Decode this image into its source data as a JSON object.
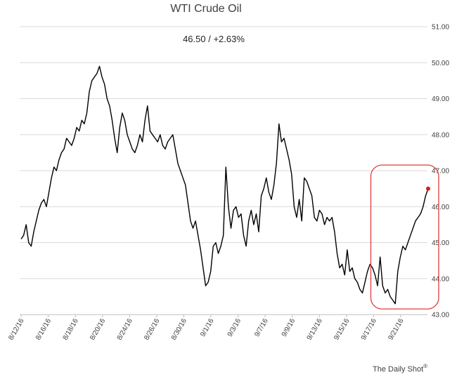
{
  "chart_data": {
    "type": "line",
    "title": "WTI Crude Oil",
    "subtitle": "46.50  /  +2.63%",
    "xlabel": "",
    "ylabel": "",
    "ylim": [
      43.0,
      51.0
    ],
    "yticks": [
      "43.00",
      "44.00",
      "45.00",
      "46.00",
      "47.00",
      "48.00",
      "49.00",
      "50.00",
      "51.00"
    ],
    "y_axis_side": "right",
    "grid": "horizontal",
    "x_tick_labels": [
      "8/12/16",
      "8/16/16",
      "8/18/16",
      "8/20/16",
      "8/24/16",
      "8/26/16",
      "8/30/16",
      "9/1/16",
      "9/3/16",
      "9/7/16",
      "9/9/16",
      "9/13/16",
      "9/15/16",
      "9/17/16",
      "9/21/16"
    ],
    "series": [
      {
        "values": [
          45.1,
          45.2,
          45.5,
          45.0,
          44.9,
          45.3,
          45.6,
          45.9,
          46.1,
          46.2,
          46.0,
          46.4,
          46.8,
          47.1,
          47.0,
          47.3,
          47.5,
          47.6,
          47.9,
          47.8,
          47.7,
          47.9,
          48.2,
          48.1,
          48.4,
          48.3,
          48.6,
          49.2,
          49.5,
          49.6,
          49.7,
          49.9,
          49.6,
          49.4,
          49.0,
          48.8,
          48.4,
          47.9,
          47.5,
          48.2,
          48.6,
          48.4,
          48.0,
          47.8,
          47.6,
          47.5,
          47.7,
          48.0,
          47.8,
          48.4,
          48.8,
          48.1,
          48.0,
          47.9,
          47.8,
          48.0,
          47.7,
          47.6,
          47.8,
          47.9,
          48.0,
          47.6,
          47.2,
          47.0,
          46.8,
          46.6,
          46.1,
          45.6,
          45.4,
          45.6,
          45.2,
          44.8,
          44.3,
          43.8,
          43.9,
          44.2,
          44.9,
          45.0,
          44.7,
          44.9,
          45.2,
          47.1,
          46.0,
          45.4,
          45.9,
          46.0,
          45.7,
          45.8,
          45.2,
          44.9,
          45.6,
          45.9,
          45.5,
          45.8,
          45.3,
          46.3,
          46.5,
          46.8,
          46.4,
          46.2,
          46.6,
          47.2,
          48.3,
          47.8,
          47.9,
          47.6,
          47.3,
          46.9,
          46.0,
          45.7,
          46.2,
          45.6,
          46.8,
          46.7,
          46.5,
          46.3,
          45.7,
          45.6,
          45.9,
          45.8,
          45.5,
          45.7,
          45.6,
          45.7,
          45.3,
          44.7,
          44.3,
          44.4,
          44.1,
          44.8,
          44.2,
          44.3,
          44.0,
          43.9,
          43.7,
          43.6,
          43.9,
          44.2,
          44.4,
          44.3,
          44.1,
          43.8,
          44.6,
          43.8,
          43.6,
          43.7,
          43.5,
          43.4,
          43.3,
          44.2,
          44.6,
          44.9,
          44.8,
          45.0,
          45.2,
          45.4,
          45.6,
          45.7,
          45.8,
          46.0,
          46.3,
          46.5
        ]
      }
    ],
    "last_point_marker": "red dot",
    "annotation": "red rounded rectangle highlighting the final rally",
    "credit": "The Daily Shot",
    "credit_mark": "®",
    "colors": {
      "line": "#000000",
      "highlight": "#e03c3c",
      "marker": "#d62020",
      "grid": "#d9d9d9",
      "text": "#404040"
    }
  }
}
